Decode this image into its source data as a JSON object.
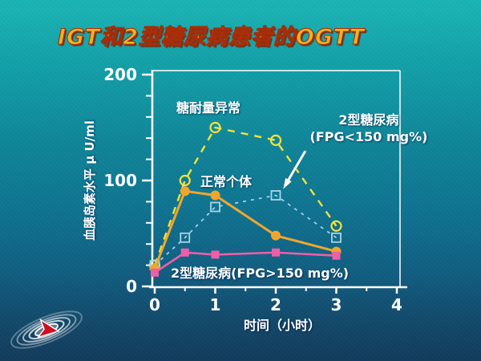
{
  "slide": {
    "title": "IGT和2型糖尿病患者的OGTT"
  },
  "chart_data": {
    "type": "line",
    "title": "IGT和2型糖尿病患者的OGTT",
    "x": [
      0,
      0.5,
      1,
      2,
      3
    ],
    "series": [
      {
        "name": "糖耐量异常",
        "values": [
          20,
          100,
          150,
          138,
          57
        ],
        "color": "#f2e23c",
        "line": "dashed",
        "marker": "circle-open"
      },
      {
        "name": "2型糖尿病 (FPG<150 mg%)",
        "values": [
          20,
          46,
          75,
          86,
          46
        ],
        "color": "#a9d6e9",
        "line": "dashed",
        "marker": "square-open"
      },
      {
        "name": "正常个体",
        "values": [
          17,
          90,
          86,
          48,
          33
        ],
        "color": "#f0a62e",
        "line": "solid",
        "marker": "circle-filled"
      },
      {
        "name": "2型糖尿病 (FPG>150 mg%)",
        "values": [
          13,
          32,
          30,
          32,
          29
        ],
        "color": "#ee5fa8",
        "line": "solid",
        "marker": "square-filled"
      }
    ],
    "xlabel": "时间（小时）",
    "ylabel": "血胰岛素水平 μ U/ml",
    "xlim": [
      0,
      4
    ],
    "ylim": [
      0,
      200
    ],
    "xticks": [
      0,
      1,
      2,
      3,
      4
    ],
    "yticks": [
      0,
      100,
      200
    ],
    "minor_x_step": 0.5,
    "minor_y_step": 20,
    "grid": "off",
    "legend_position": "inline-annotations",
    "annotations": {
      "igt": "糖耐量异常",
      "normal": "正常个体",
      "t2dm_low_1": "2型糖尿病",
      "t2dm_low_2": "(FPG<150 mg%)",
      "t2dm_high": "2型糖尿病(FPG>150 mg%)",
      "axis_color": "#ffffff"
    }
  },
  "logo": {
    "name": "ripple-swirl-logo",
    "arrow_color": "#cf1020"
  }
}
